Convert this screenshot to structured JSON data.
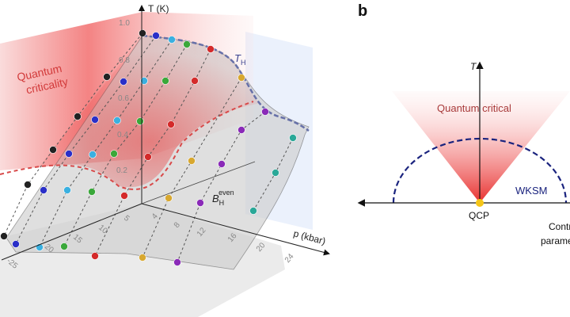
{
  "panel_a": {
    "t_axis_label": "T (K)",
    "t_ticks": [
      "1.0",
      "0.8",
      "0.6",
      "0.4",
      "0.2"
    ],
    "p_axis_label": "p (kbar)",
    "p_ticks": [
      "4",
      "8",
      "12",
      "16",
      "20",
      "24"
    ],
    "b_ticks": [
      "5",
      "10",
      "15",
      "20",
      "-25"
    ],
    "quantum_criticality_line1": "Quantum",
    "quantum_criticality_line2": "criticality",
    "th_label": "T",
    "th_sub": "H",
    "bh_label": "B",
    "bh_sub": "H",
    "bh_sup": "even",
    "colors": {
      "quantum_red": "#e8302e",
      "th_curve": "#6670a8",
      "series": [
        "#222222",
        "#2a2fc8",
        "#3ab0e0",
        "#3aa83a",
        "#d42a2a",
        "#d8a830",
        "#8a2ab8",
        "#2aa898"
      ]
    }
  },
  "panel_b": {
    "panel_letter": "b",
    "t_axis_label": "T",
    "quantum_critical_label": "Quantum critical",
    "wksm_label": "WKSM",
    "qcp_label": "QCP",
    "x_axis_label_line1": "Control",
    "x_axis_label_line2": "parameter",
    "colors": {
      "cone": "#e8302e",
      "dome": "#1a237e",
      "qcp": "#f5c518"
    }
  }
}
